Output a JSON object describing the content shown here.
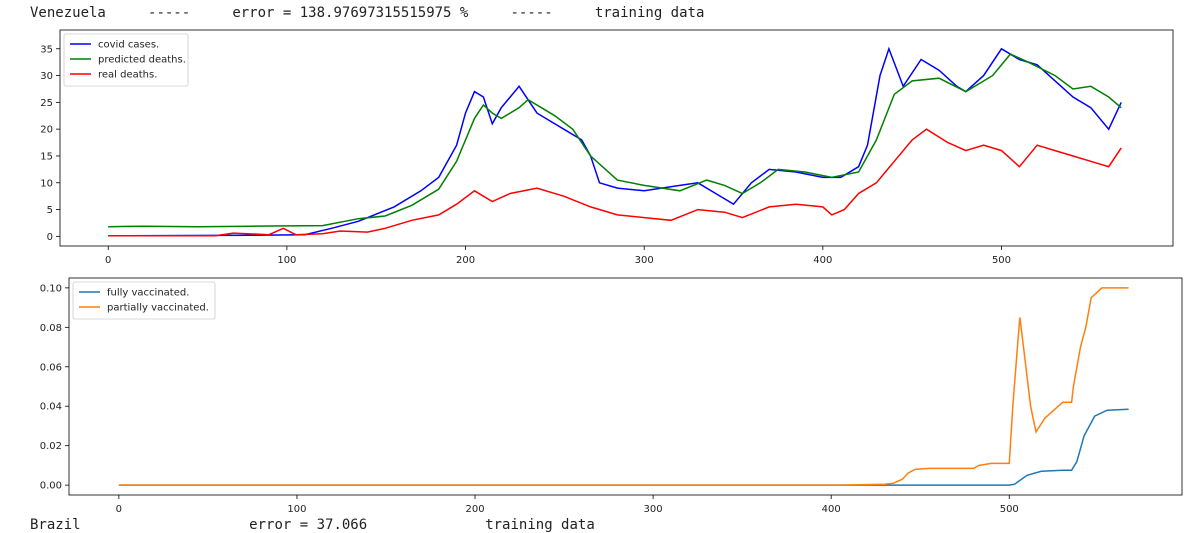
{
  "header": {
    "country": "Venezuela",
    "sep1": "-----",
    "error": "error = 138.97697315515975 %",
    "sep2": "-----",
    "mode": "training data"
  },
  "footer": {
    "country": "Brazil",
    "error": "error = 37.066",
    "mode": "training data"
  },
  "chart_data": [
    {
      "type": "line",
      "title": "",
      "xlabel": "",
      "ylabel": "",
      "xlim": [
        -27,
        596
      ],
      "ylim": [
        -1.8,
        38.5
      ],
      "xticks": [
        0,
        100,
        200,
        300,
        400,
        500
      ],
      "yticks": [
        0,
        5,
        10,
        15,
        20,
        25,
        30,
        35
      ],
      "legend_position": "top-left",
      "series": [
        {
          "name": "covid cases.",
          "color": "#0000ff",
          "points": [
            [
              0,
              0.1
            ],
            [
              80,
              0.2
            ],
            [
              110,
              0.3
            ],
            [
              125,
              1.5
            ],
            [
              140,
              2.8
            ],
            [
              160,
              5.5
            ],
            [
              175,
              8.5
            ],
            [
              185,
              11
            ],
            [
              195,
              17
            ],
            [
              200,
              23
            ],
            [
              205,
              27
            ],
            [
              210,
              26
            ],
            [
              215,
              21
            ],
            [
              220,
              24
            ],
            [
              230,
              28
            ],
            [
              240,
              23
            ],
            [
              255,
              20
            ],
            [
              265,
              18
            ],
            [
              270,
              15
            ],
            [
              275,
              10
            ],
            [
              285,
              9
            ],
            [
              300,
              8.5
            ],
            [
              320,
              9.5
            ],
            [
              330,
              10
            ],
            [
              340,
              8
            ],
            [
              350,
              6
            ],
            [
              360,
              10
            ],
            [
              370,
              12.5
            ],
            [
              385,
              12
            ],
            [
              400,
              11
            ],
            [
              410,
              11
            ],
            [
              420,
              13
            ],
            [
              425,
              17
            ],
            [
              432,
              30
            ],
            [
              437,
              35
            ],
            [
              445,
              28
            ],
            [
              455,
              33
            ],
            [
              465,
              31
            ],
            [
              475,
              28
            ],
            [
              480,
              27
            ],
            [
              490,
              30
            ],
            [
              500,
              35
            ],
            [
              510,
              33
            ],
            [
              520,
              32
            ],
            [
              530,
              29
            ],
            [
              540,
              26
            ],
            [
              550,
              24
            ],
            [
              560,
              20
            ],
            [
              567,
              25
            ]
          ]
        },
        {
          "name": "predicted deaths.",
          "color": "#008000",
          "points": [
            [
              0,
              1.8
            ],
            [
              20,
              1.9
            ],
            [
              50,
              1.8
            ],
            [
              80,
              1.9
            ],
            [
              120,
              2.0
            ],
            [
              140,
              3.3
            ],
            [
              155,
              3.8
            ],
            [
              170,
              5.8
            ],
            [
              185,
              8.8
            ],
            [
              195,
              14
            ],
            [
              205,
              22
            ],
            [
              210,
              24.5
            ],
            [
              215,
              23
            ],
            [
              220,
              22
            ],
            [
              230,
              24
            ],
            [
              235,
              25.5
            ],
            [
              250,
              22.5
            ],
            [
              260,
              20
            ],
            [
              270,
              15
            ],
            [
              285,
              10.5
            ],
            [
              300,
              9.5
            ],
            [
              320,
              8.5
            ],
            [
              335,
              10.5
            ],
            [
              345,
              9.5
            ],
            [
              355,
              8
            ],
            [
              365,
              10
            ],
            [
              375,
              12.5
            ],
            [
              390,
              12
            ],
            [
              405,
              11
            ],
            [
              420,
              12
            ],
            [
              430,
              18
            ],
            [
              440,
              26.5
            ],
            [
              450,
              29
            ],
            [
              465,
              29.5
            ],
            [
              480,
              27
            ],
            [
              495,
              30
            ],
            [
              505,
              34
            ],
            [
              515,
              32.5
            ],
            [
              530,
              30
            ],
            [
              540,
              27.5
            ],
            [
              550,
              28
            ],
            [
              560,
              26
            ],
            [
              567,
              24
            ]
          ]
        },
        {
          "name": "real deaths.",
          "color": "#ff0000",
          "points": [
            [
              0,
              0.1
            ],
            [
              60,
              0.1
            ],
            [
              70,
              0.6
            ],
            [
              90,
              0.3
            ],
            [
              98,
              1.5
            ],
            [
              105,
              0.3
            ],
            [
              120,
              0.5
            ],
            [
              130,
              1.0
            ],
            [
              145,
              0.8
            ],
            [
              155,
              1.5
            ],
            [
              170,
              3.0
            ],
            [
              185,
              4.0
            ],
            [
              195,
              6.0
            ],
            [
              205,
              8.5
            ],
            [
              215,
              6.5
            ],
            [
              225,
              8.0
            ],
            [
              240,
              9.0
            ],
            [
              255,
              7.5
            ],
            [
              270,
              5.5
            ],
            [
              285,
              4.0
            ],
            [
              300,
              3.5
            ],
            [
              315,
              3.0
            ],
            [
              330,
              5.0
            ],
            [
              345,
              4.5
            ],
            [
              355,
              3.5
            ],
            [
              370,
              5.5
            ],
            [
              385,
              6.0
            ],
            [
              400,
              5.5
            ],
            [
              405,
              4.0
            ],
            [
              412,
              5.0
            ],
            [
              420,
              8.0
            ],
            [
              430,
              10
            ],
            [
              440,
              14
            ],
            [
              450,
              18
            ],
            [
              458,
              20
            ],
            [
              470,
              17.5
            ],
            [
              480,
              16
            ],
            [
              490,
              17
            ],
            [
              500,
              16
            ],
            [
              510,
              13
            ],
            [
              520,
              17
            ],
            [
              530,
              16
            ],
            [
              540,
              15
            ],
            [
              550,
              14
            ],
            [
              560,
              13
            ],
            [
              567,
              16.5
            ]
          ]
        }
      ]
    },
    {
      "type": "line",
      "title": "",
      "xlabel": "",
      "ylabel": "",
      "xlim": [
        -28,
        597
      ],
      "ylim": [
        -0.005,
        0.105
      ],
      "xticks": [
        0,
        100,
        200,
        300,
        400,
        500
      ],
      "yticks": [
        0.0,
        0.02,
        0.04,
        0.06,
        0.08,
        0.1
      ],
      "ytick_labels": [
        "0.00",
        "0.02",
        "0.04",
        "0.06",
        "0.08",
        "0.10"
      ],
      "legend_position": "top-left",
      "series": [
        {
          "name": "fully vaccinated.",
          "color": "#1f77b4",
          "points": [
            [
              0,
              0
            ],
            [
              500,
              0
            ],
            [
              503,
              0.0005
            ],
            [
              510,
              0.005
            ],
            [
              518,
              0.007
            ],
            [
              530,
              0.0075
            ],
            [
              535,
              0.0075
            ],
            [
              538,
              0.012
            ],
            [
              542,
              0.025
            ],
            [
              548,
              0.035
            ],
            [
              555,
              0.038
            ],
            [
              567,
              0.0385
            ]
          ]
        },
        {
          "name": "partially vaccinated.",
          "color": "#ff7f0e",
          "points": [
            [
              0,
              0
            ],
            [
              405,
              0
            ],
            [
              430,
              0.0005
            ],
            [
              435,
              0.001
            ],
            [
              440,
              0.003
            ],
            [
              443,
              0.006
            ],
            [
              447,
              0.008
            ],
            [
              455,
              0.0085
            ],
            [
              480,
              0.0085
            ],
            [
              483,
              0.01
            ],
            [
              490,
              0.011
            ],
            [
              498,
              0.011
            ],
            [
              500,
              0.011
            ],
            [
              502,
              0.04
            ],
            [
              505,
              0.075
            ],
            [
              506,
              0.085
            ],
            [
              508,
              0.07
            ],
            [
              512,
              0.04
            ],
            [
              515,
              0.027
            ],
            [
              520,
              0.034
            ],
            [
              525,
              0.038
            ],
            [
              530,
              0.042
            ],
            [
              535,
              0.042
            ],
            [
              536,
              0.05
            ],
            [
              540,
              0.07
            ],
            [
              543,
              0.08
            ],
            [
              546,
              0.095
            ],
            [
              552,
              0.1
            ],
            [
              567,
              0.1
            ]
          ]
        }
      ]
    }
  ]
}
